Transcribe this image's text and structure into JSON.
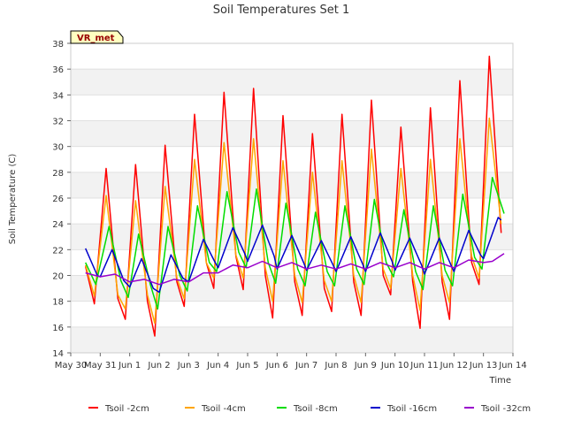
{
  "chart_data": {
    "type": "line",
    "title": "Soil Temperatures Set 1",
    "xlabel": "Time",
    "ylabel": "Soil Temperature (C)",
    "badge": "VR_met",
    "xlim": [
      0,
      15
    ],
    "ylim": [
      14,
      38
    ],
    "x_ticks": [
      {
        "value": 0,
        "label": "May 30"
      },
      {
        "value": 1,
        "label": "May 31"
      },
      {
        "value": 2,
        "label": "Jun 1"
      },
      {
        "value": 3,
        "label": "Jun 2"
      },
      {
        "value": 4,
        "label": "Jun 3"
      },
      {
        "value": 5,
        "label": "Jun 4"
      },
      {
        "value": 6,
        "label": "Jun 5"
      },
      {
        "value": 7,
        "label": "Jun 6"
      },
      {
        "value": 8,
        "label": "Jun 7"
      },
      {
        "value": 9,
        "label": "Jun 8"
      },
      {
        "value": 10,
        "label": "Jun 9"
      },
      {
        "value": 11,
        "label": "Jun 10"
      },
      {
        "value": 12,
        "label": "Jun 11"
      },
      {
        "value": 13,
        "label": "Jun 12"
      },
      {
        "value": 14,
        "label": "Jun 13"
      },
      {
        "value": 15,
        "label": "Jun 14"
      }
    ],
    "y_ticks": [
      14,
      16,
      18,
      20,
      22,
      24,
      26,
      28,
      30,
      32,
      34,
      36,
      38
    ],
    "grid": true,
    "legend_position": "bottom",
    "series": [
      {
        "name": "Tsoil -2cm",
        "color": "#ff0000",
        "points": [
          [
            0.5,
            20.7
          ],
          [
            0.8,
            17.8
          ],
          [
            1.2,
            28.3
          ],
          [
            1.6,
            18.2
          ],
          [
            1.85,
            16.6
          ],
          [
            2.2,
            28.6
          ],
          [
            2.6,
            18.0
          ],
          [
            2.85,
            15.3
          ],
          [
            3.2,
            30.1
          ],
          [
            3.6,
            19.5
          ],
          [
            3.85,
            17.6
          ],
          [
            4.2,
            32.5
          ],
          [
            4.6,
            21.0
          ],
          [
            4.85,
            19.0
          ],
          [
            5.2,
            34.2
          ],
          [
            5.6,
            21.5
          ],
          [
            5.85,
            18.9
          ],
          [
            6.2,
            34.5
          ],
          [
            6.6,
            20.0
          ],
          [
            6.85,
            16.7
          ],
          [
            7.2,
            32.4
          ],
          [
            7.6,
            19.5
          ],
          [
            7.85,
            16.9
          ],
          [
            8.2,
            31.0
          ],
          [
            8.6,
            19.0
          ],
          [
            8.85,
            17.2
          ],
          [
            9.2,
            32.5
          ],
          [
            9.6,
            19.5
          ],
          [
            9.85,
            16.9
          ],
          [
            10.2,
            33.6
          ],
          [
            10.6,
            20.0
          ],
          [
            10.85,
            18.5
          ],
          [
            11.2,
            31.5
          ],
          [
            11.6,
            19.5
          ],
          [
            11.85,
            15.9
          ],
          [
            12.2,
            33.0
          ],
          [
            12.6,
            19.5
          ],
          [
            12.85,
            16.6
          ],
          [
            13.2,
            35.1
          ],
          [
            13.6,
            21.0
          ],
          [
            13.85,
            19.3
          ],
          [
            14.2,
            37.0
          ],
          [
            14.6,
            23.3
          ]
        ]
      },
      {
        "name": "Tsoil -4cm",
        "color": "#ffa500",
        "points": [
          [
            0.5,
            20.8
          ],
          [
            0.8,
            18.4
          ],
          [
            1.2,
            26.2
          ],
          [
            1.6,
            18.5
          ],
          [
            1.85,
            17.4
          ],
          [
            2.2,
            25.8
          ],
          [
            2.6,
            18.5
          ],
          [
            2.85,
            16.3
          ],
          [
            3.2,
            26.9
          ],
          [
            3.6,
            19.8
          ],
          [
            3.85,
            18.2
          ],
          [
            4.2,
            29.0
          ],
          [
            4.6,
            21.0
          ],
          [
            4.85,
            19.8
          ],
          [
            5.2,
            30.3
          ],
          [
            5.6,
            21.6
          ],
          [
            5.85,
            19.8
          ],
          [
            6.2,
            30.6
          ],
          [
            6.6,
            20.6
          ],
          [
            6.85,
            18.0
          ],
          [
            7.2,
            28.9
          ],
          [
            7.6,
            20.0
          ],
          [
            7.85,
            17.9
          ],
          [
            8.2,
            28.0
          ],
          [
            8.6,
            19.6
          ],
          [
            8.85,
            18.0
          ],
          [
            9.2,
            28.9
          ],
          [
            9.6,
            20.0
          ],
          [
            9.85,
            17.9
          ],
          [
            10.2,
            29.8
          ],
          [
            10.6,
            20.5
          ],
          [
            10.85,
            19.0
          ],
          [
            11.2,
            28.3
          ],
          [
            11.6,
            20.0
          ],
          [
            11.85,
            17.3
          ],
          [
            12.2,
            29.0
          ],
          [
            12.6,
            20.0
          ],
          [
            12.85,
            17.9
          ],
          [
            13.2,
            30.6
          ],
          [
            13.6,
            21.5
          ],
          [
            13.85,
            19.8
          ],
          [
            14.2,
            32.2
          ],
          [
            14.6,
            24.0
          ]
        ]
      },
      {
        "name": "Tsoil -8cm",
        "color": "#00dd00",
        "points": [
          [
            0.5,
            21.0
          ],
          [
            0.85,
            19.3
          ],
          [
            1.3,
            23.8
          ],
          [
            1.7,
            19.6
          ],
          [
            1.95,
            18.3
          ],
          [
            2.3,
            23.2
          ],
          [
            2.7,
            19.3
          ],
          [
            2.95,
            17.4
          ],
          [
            3.3,
            23.8
          ],
          [
            3.7,
            20.0
          ],
          [
            3.95,
            18.8
          ],
          [
            4.3,
            25.4
          ],
          [
            4.7,
            21.0
          ],
          [
            4.95,
            20.3
          ],
          [
            5.3,
            26.5
          ],
          [
            5.7,
            21.8
          ],
          [
            5.95,
            20.6
          ],
          [
            6.3,
            26.7
          ],
          [
            6.7,
            21.0
          ],
          [
            6.95,
            19.4
          ],
          [
            7.3,
            25.6
          ],
          [
            7.7,
            20.5
          ],
          [
            7.95,
            19.2
          ],
          [
            8.3,
            24.9
          ],
          [
            8.7,
            20.3
          ],
          [
            8.95,
            19.2
          ],
          [
            9.3,
            25.4
          ],
          [
            9.7,
            20.5
          ],
          [
            9.95,
            19.3
          ],
          [
            10.3,
            25.9
          ],
          [
            10.7,
            21.0
          ],
          [
            10.95,
            19.9
          ],
          [
            11.3,
            25.1
          ],
          [
            11.7,
            20.3
          ],
          [
            11.95,
            18.9
          ],
          [
            12.3,
            25.4
          ],
          [
            12.7,
            20.4
          ],
          [
            12.95,
            19.2
          ],
          [
            13.3,
            26.3
          ],
          [
            13.7,
            21.4
          ],
          [
            13.95,
            20.5
          ],
          [
            14.3,
            27.6
          ],
          [
            14.7,
            24.8
          ]
        ]
      },
      {
        "name": "Tsoil -16cm",
        "color": "#0000cc",
        "points": [
          [
            0.5,
            22.1
          ],
          [
            0.9,
            20.0
          ],
          [
            1.0,
            19.9
          ],
          [
            1.4,
            22.0
          ],
          [
            1.8,
            19.6
          ],
          [
            2.0,
            19.1
          ],
          [
            2.4,
            21.3
          ],
          [
            2.8,
            19.0
          ],
          [
            3.0,
            18.7
          ],
          [
            3.4,
            21.6
          ],
          [
            3.8,
            19.8
          ],
          [
            4.0,
            19.5
          ],
          [
            4.5,
            22.8
          ],
          [
            4.9,
            21.0
          ],
          [
            5.0,
            20.6
          ],
          [
            5.5,
            23.7
          ],
          [
            5.9,
            21.7
          ],
          [
            6.0,
            21.1
          ],
          [
            6.5,
            23.9
          ],
          [
            6.9,
            21.5
          ],
          [
            7.0,
            20.5
          ],
          [
            7.5,
            23.1
          ],
          [
            7.9,
            21.0
          ],
          [
            8.0,
            20.4
          ],
          [
            8.5,
            22.7
          ],
          [
            8.9,
            20.8
          ],
          [
            9.0,
            20.3
          ],
          [
            9.5,
            23.0
          ],
          [
            9.9,
            20.9
          ],
          [
            10.0,
            20.3
          ],
          [
            10.5,
            23.3
          ],
          [
            10.9,
            21.1
          ],
          [
            11.0,
            20.4
          ],
          [
            11.5,
            22.9
          ],
          [
            11.9,
            20.8
          ],
          [
            12.0,
            20.1
          ],
          [
            12.5,
            22.9
          ],
          [
            12.9,
            20.8
          ],
          [
            13.0,
            20.3
          ],
          [
            13.5,
            23.5
          ],
          [
            13.9,
            21.6
          ],
          [
            14.0,
            21.3
          ],
          [
            14.5,
            24.5
          ],
          [
            14.6,
            24.3
          ]
        ]
      },
      {
        "name": "Tsoil -32cm",
        "color": "#9900cc",
        "points": [
          [
            0.5,
            20.2
          ],
          [
            1.0,
            19.9
          ],
          [
            1.5,
            20.1
          ],
          [
            2.0,
            19.5
          ],
          [
            2.5,
            19.7
          ],
          [
            3.0,
            19.3
          ],
          [
            3.5,
            19.7
          ],
          [
            4.0,
            19.5
          ],
          [
            4.5,
            20.2
          ],
          [
            5.0,
            20.2
          ],
          [
            5.5,
            20.8
          ],
          [
            6.0,
            20.6
          ],
          [
            6.5,
            21.1
          ],
          [
            7.0,
            20.6
          ],
          [
            7.5,
            21.0
          ],
          [
            8.0,
            20.5
          ],
          [
            8.5,
            20.8
          ],
          [
            9.0,
            20.5
          ],
          [
            9.5,
            20.9
          ],
          [
            10.0,
            20.5
          ],
          [
            10.5,
            21.0
          ],
          [
            11.0,
            20.6
          ],
          [
            11.5,
            21.0
          ],
          [
            12.0,
            20.5
          ],
          [
            12.5,
            21.0
          ],
          [
            13.0,
            20.6
          ],
          [
            13.5,
            21.2
          ],
          [
            14.0,
            21.0
          ],
          [
            14.3,
            21.1
          ],
          [
            14.7,
            21.7
          ]
        ]
      }
    ]
  }
}
